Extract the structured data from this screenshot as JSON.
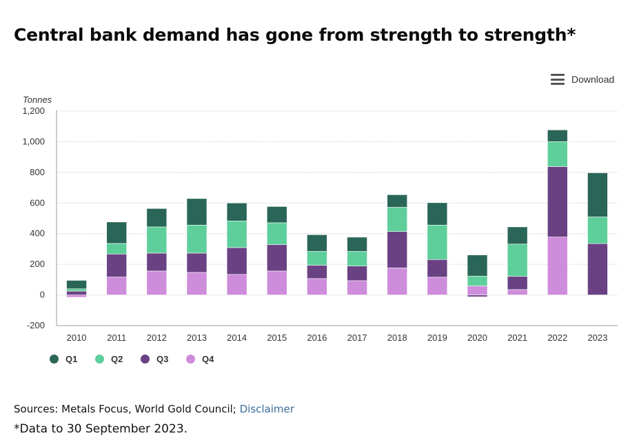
{
  "header": {
    "title": "Central bank demand has gone from strength to strength*"
  },
  "toolbar": {
    "download_label": "Download",
    "download_icon": "hamburger-menu-icon"
  },
  "footer": {
    "sources_text": "Sources: Metals Focus, World Gold Council; ",
    "disclaimer_link": "Disclaimer",
    "footnote": "*Data to 30 September 2023."
  },
  "colors": {
    "Q1": "#2a6657",
    "Q2": "#5ecf9a",
    "Q3": "#6a4284",
    "Q4": "#ce8ddb",
    "link": "#3b6b9c"
  },
  "chart_data": {
    "type": "bar",
    "stacked": true,
    "title": "Central bank demand has gone from strength to strength*",
    "xlabel": "",
    "ylabel": "Tonnes",
    "ylim": [
      -200,
      1200
    ],
    "yticks": [
      -200,
      0,
      200,
      400,
      600,
      800,
      1000,
      1200
    ],
    "ytick_labels": [
      "-200",
      "0",
      "200",
      "400",
      "600",
      "800",
      "1,000",
      "1,200"
    ],
    "grid": true,
    "legend_position": "bottom-left",
    "categories": [
      "2010",
      "2011",
      "2012",
      "2013",
      "2014",
      "2015",
      "2016",
      "2017",
      "2018",
      "2019",
      "2020",
      "2021",
      "2022",
      "2023"
    ],
    "series": [
      {
        "name": "Q4",
        "color": "#ce8ddb",
        "values": [
          -15,
          117,
          156,
          147,
          134,
          156,
          107,
          93,
          176,
          116,
          59,
          35,
          378,
          0
        ]
      },
      {
        "name": "Q3",
        "color": "#6a4284",
        "values": [
          25,
          150,
          117,
          126,
          175,
          173,
          87,
          96,
          238,
          115,
          -12,
          87,
          460,
          335
        ]
      },
      {
        "name": "Q2",
        "color": "#5ecf9a",
        "values": [
          15,
          69,
          171,
          183,
          174,
          142,
          90,
          95,
          158,
          225,
          64,
          210,
          162,
          174
        ]
      },
      {
        "name": "Q1",
        "color": "#2a6657",
        "values": [
          55,
          140,
          120,
          173,
          117,
          106,
          109,
          93,
          82,
          146,
          138,
          112,
          77,
          288
        ]
      }
    ],
    "legend": [
      "Q1",
      "Q2",
      "Q3",
      "Q4"
    ]
  }
}
